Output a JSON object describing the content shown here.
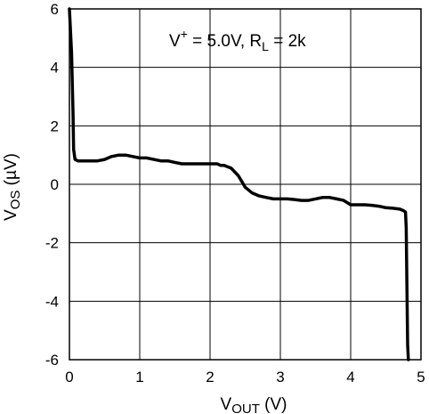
{
  "chart_data": {
    "type": "line",
    "title": "",
    "xlabel": {
      "main": "V",
      "sub": "OUT",
      "unit": " (V)"
    },
    "ylabel": {
      "main": "V",
      "sub": "OS",
      "unit": " (µV)"
    },
    "xlim": [
      0,
      5
    ],
    "ylim": [
      -6,
      6
    ],
    "xticks": [
      0,
      1,
      2,
      3,
      4,
      5
    ],
    "yticks": [
      -6,
      -4,
      -2,
      0,
      2,
      4,
      6
    ],
    "xticklabels": [
      "0",
      "1",
      "2",
      "3",
      "4",
      "5"
    ],
    "yticklabels": [
      "-6",
      "-4",
      "-2",
      "0",
      "2",
      "4",
      "6"
    ],
    "grid": true,
    "annotation": {
      "parts": [
        {
          "text": "V",
          "style": "normal"
        },
        {
          "text": "+",
          "style": "super"
        },
        {
          "text": " = 5.0V, R",
          "style": "normal"
        },
        {
          "text": "L",
          "style": "sub"
        },
        {
          "text": " = 2k",
          "style": "normal"
        }
      ]
    },
    "series": [
      {
        "color": "#000000",
        "x": [
          0.0,
          0.03,
          0.05,
          0.06,
          0.08,
          0.12,
          0.2,
          0.3,
          0.4,
          0.5,
          0.6,
          0.7,
          0.8,
          0.9,
          1.0,
          1.1,
          1.2,
          1.3,
          1.4,
          1.5,
          1.6,
          1.7,
          1.8,
          1.9,
          2.0,
          2.1,
          2.15,
          2.2,
          2.3,
          2.4,
          2.45,
          2.5,
          2.6,
          2.7,
          2.8,
          2.9,
          3.0,
          3.1,
          3.2,
          3.3,
          3.4,
          3.5,
          3.6,
          3.7,
          3.8,
          3.9,
          4.0,
          4.1,
          4.2,
          4.3,
          4.4,
          4.5,
          4.6,
          4.7,
          4.75,
          4.78,
          4.79,
          4.8,
          4.81,
          4.82
        ],
        "y": [
          6.0,
          4.5,
          2.5,
          1.2,
          0.85,
          0.8,
          0.8,
          0.8,
          0.8,
          0.85,
          0.95,
          1.0,
          1.0,
          0.95,
          0.9,
          0.9,
          0.85,
          0.8,
          0.8,
          0.75,
          0.7,
          0.7,
          0.7,
          0.7,
          0.7,
          0.7,
          0.65,
          0.65,
          0.55,
          0.3,
          0.1,
          -0.1,
          -0.3,
          -0.4,
          -0.45,
          -0.5,
          -0.5,
          -0.5,
          -0.52,
          -0.55,
          -0.55,
          -0.5,
          -0.45,
          -0.45,
          -0.5,
          -0.55,
          -0.7,
          -0.7,
          -0.7,
          -0.72,
          -0.75,
          -0.8,
          -0.82,
          -0.85,
          -0.9,
          -0.95,
          -1.5,
          -3.5,
          -5.5,
          -6.0
        ]
      }
    ]
  }
}
